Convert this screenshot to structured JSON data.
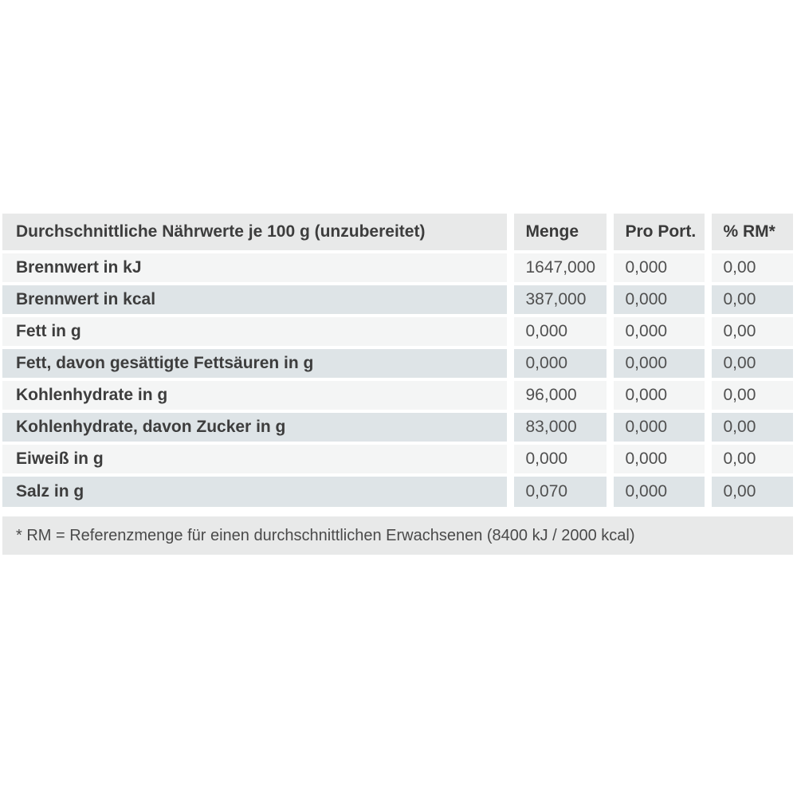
{
  "table": {
    "header": {
      "label": "Durchschnittliche Nährwerte je 100 g (unzubereitet)",
      "col_menge": "Menge",
      "col_pro_port": "Pro Port.",
      "col_rm": "% RM*"
    },
    "rows": [
      {
        "label": "Brennwert in kJ",
        "menge": "1647,000",
        "pro_port": "0,000",
        "rm": "0,00"
      },
      {
        "label": "Brennwert in kcal",
        "menge": "387,000",
        "pro_port": "0,000",
        "rm": "0,00"
      },
      {
        "label": "Fett in g",
        "menge": "0,000",
        "pro_port": "0,000",
        "rm": "0,00"
      },
      {
        "label": "Fett, davon gesättigte Fettsäuren in g",
        "menge": "0,000",
        "pro_port": "0,000",
        "rm": "0,00"
      },
      {
        "label": "Kohlenhydrate in g",
        "menge": "96,000",
        "pro_port": "0,000",
        "rm": "0,00"
      },
      {
        "label": "Kohlenhydrate, davon Zucker in g",
        "menge": "83,000",
        "pro_port": "0,000",
        "rm": "0,00"
      },
      {
        "label": "Eiweiß in g",
        "menge": "0,000",
        "pro_port": "0,000",
        "rm": "0,00"
      },
      {
        "label": "Salz in g",
        "menge": "0,070",
        "pro_port": "0,000",
        "rm": "0,00"
      }
    ],
    "footnote": "* RM = Referenzmenge für einen durchschnittlichen Erwachsenen (8400 kJ / 2000 kcal)"
  },
  "colors": {
    "header_band_bg": "#e8e9e9",
    "row_odd_bg": "#f4f5f5",
    "row_even_bg": "#dee4e7",
    "footnote_bg": "#e8e9e9",
    "label_text": "#3d3d3d",
    "value_text": "#505050",
    "page_bg": "#ffffff"
  }
}
